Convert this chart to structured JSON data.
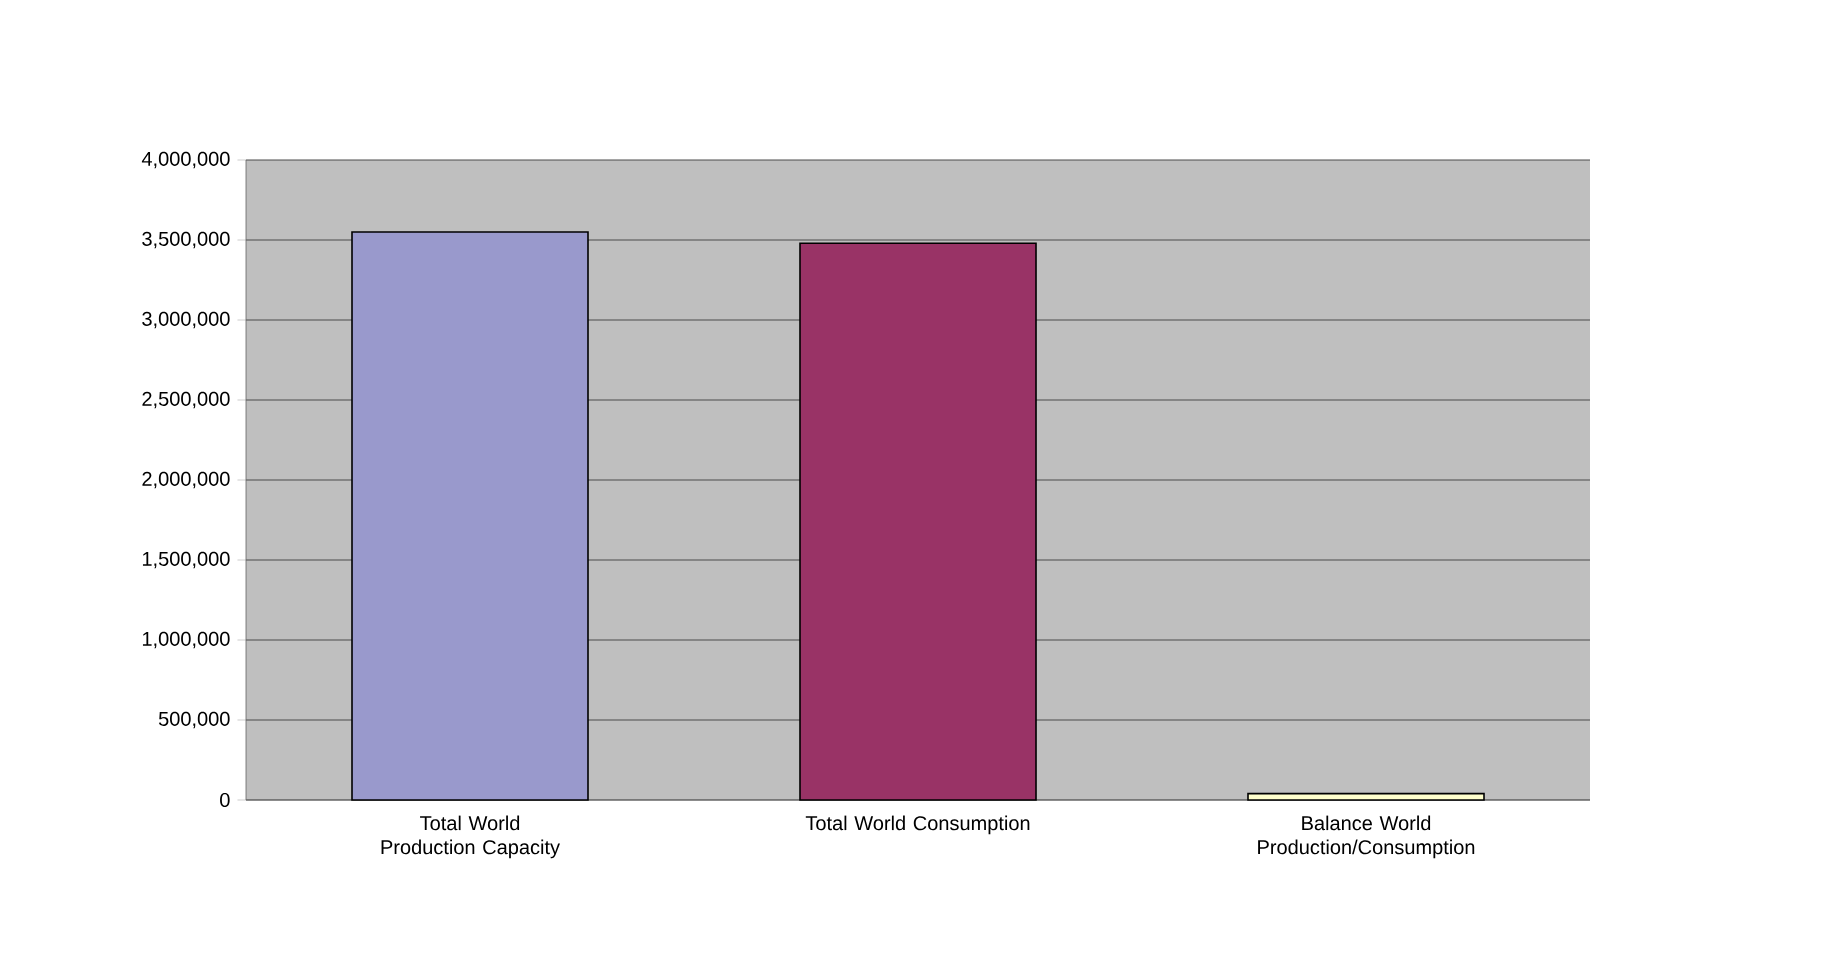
{
  "chart_data": {
    "type": "bar",
    "categories": [
      "Total World Production Capacity",
      "Total World Consumption",
      "Balance World Production/Consumption"
    ],
    "values": [
      3550000,
      3480000,
      40000
    ],
    "colors": [
      "#9999cc",
      "#993366",
      "#ffffcc"
    ],
    "ylim": [
      0,
      4000000
    ],
    "yticks": [
      {
        "value": 0,
        "label": "0"
      },
      {
        "value": 500000,
        "label": "500,000"
      },
      {
        "value": 1000000,
        "label": "1,000,000"
      },
      {
        "value": 1500000,
        "label": "1,500,000"
      },
      {
        "value": 2000000,
        "label": "2,000,000"
      },
      {
        "value": 2500000,
        "label": "2,500,000"
      },
      {
        "value": 3000000,
        "label": "3,000,000"
      },
      {
        "value": 3500000,
        "label": "3,500,000"
      },
      {
        "value": 4000000,
        "label": "4,000,000"
      }
    ],
    "grid": "y"
  }
}
